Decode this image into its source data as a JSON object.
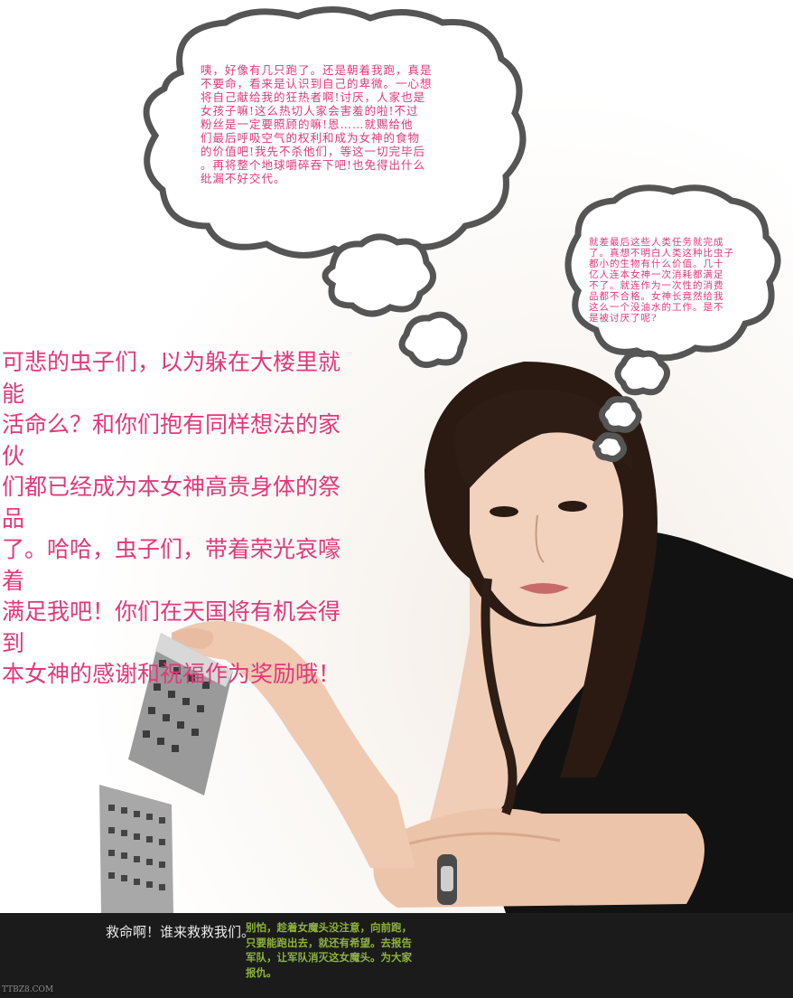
{
  "bubble_large": {
    "text": "咦，好像有几只跑了。还是朝着我跑，真是\n不要命，看来是认识到自己的卑微。一心想\n将自己献给我的狂热者啊!讨厌，人家也是\n女孩子嘛!这么热切人家会害羞的啦!不过\n粉丝是一定要照顾的嘛!恩……就赐给他\n们最后呼吸空气的权利和成为女神的食物\n的价值吧!我先不杀他们，等这一切完毕后\n。再将整个地球嚼碎吞下吧!也免得出什么\n纰漏不好交代。"
  },
  "bubble_small": {
    "text": "就差最后这些人类任务就完成\n了。真想不明白人类这种比虫子\n都小的生物有什么价值。几十\n亿人连本女神一次消耗都满足\n不了。就连作为一次性的消费\n品都不合格。女神长竟然给我\n这么一个没油水的工作。是不\n是被讨厌了呢?"
  },
  "taunt": {
    "text": "可悲的虫子们，以为躲在大楼里就能\n活命么？和你们抱有同样想法的家伙\n们都已经成为本女神高贵身体的祭品\n了。哈哈，虫子们，带着荣光哀嚎着\n满足我吧！你们在天国将有机会得到\n本女神的感谢和祝福作为奖励哦！"
  },
  "cry": {
    "text": "救命啊！谁来救救我们。"
  },
  "advice": {
    "text": "别怕，趁着女魔头没注意，向前跑，\n只要能跑出去，就还有希望。去报告\n军队，让军队消灭这女魔头。为大家\n报仇。"
  },
  "watermark": {
    "text": "TTBZ8.COM"
  },
  "colors": {
    "accent_pink": "#e0397a",
    "advice_green": "#8db33a",
    "bubble_outline": "#555555",
    "ground": "#1b1b1b"
  }
}
